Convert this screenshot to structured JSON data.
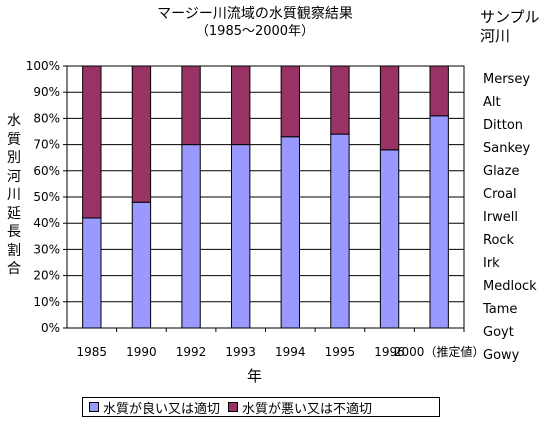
{
  "chart_data": {
    "type": "bar",
    "stacked": true,
    "percent": true,
    "title": "マージー川流域の水質観察結果",
    "subtitle": "（1985～2000年）",
    "xlabel": "年",
    "ylabel": "水質別河川延長割合",
    "categories": [
      "1985",
      "1990",
      "1992",
      "1993",
      "1994",
      "1995",
      "1996",
      "2000（推定値）"
    ],
    "series": [
      {
        "name": "水質が良い又は適切",
        "color": "#9999ff",
        "values": [
          42,
          48,
          70,
          70,
          73,
          74,
          68,
          81
        ]
      },
      {
        "name": "水質が悪い又は不適切",
        "color": "#993366",
        "values": [
          58,
          52,
          30,
          30,
          27,
          26,
          32,
          19
        ]
      }
    ],
    "ylim": [
      0,
      100
    ],
    "yticks": [
      "0%",
      "10%",
      "20%",
      "30%",
      "40%",
      "50%",
      "60%",
      "70%",
      "80%",
      "90%",
      "100%"
    ],
    "grid": true,
    "legend_position": "bottom"
  },
  "side_panel": {
    "title_line1": "サンプル",
    "title_line2": "河川",
    "rivers": [
      "Mersey",
      "Alt",
      "Ditton",
      "Sankey",
      "Glaze",
      "Croal",
      "Irwell",
      "Rock",
      "Irk",
      "Medlock",
      "Tame",
      "Goyt",
      "Gowy"
    ]
  }
}
